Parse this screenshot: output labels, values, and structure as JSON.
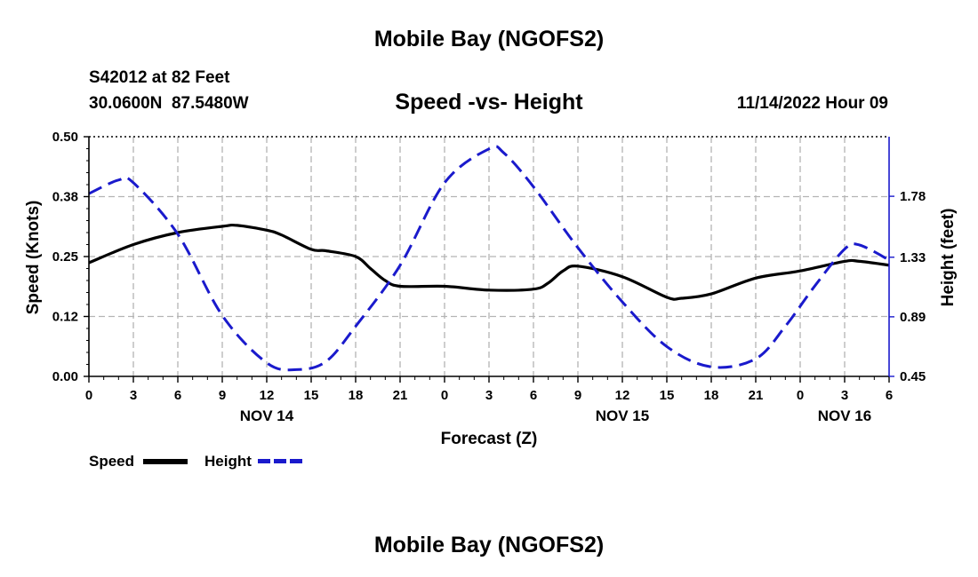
{
  "header": {
    "title": "Mobile Bay (NGOFS2)",
    "station": "S42012 at 82 Feet",
    "coords": "30.0600N  87.5480W",
    "subtitle": "Speed -vs- Height",
    "datetime": "11/14/2022 Hour 09"
  },
  "legend": {
    "speed_label": "Speed",
    "height_label": "Height"
  },
  "footer": {
    "title": "Mobile Bay (NGOFS2)"
  },
  "colors": {
    "speed": "#000000",
    "height": "#1a1acc",
    "grid": "#b4b4b4"
  },
  "chart_data": {
    "type": "line",
    "title": "Speed -vs- Height",
    "xlabel": "Forecast (Z)",
    "ylabel": "Speed (Knots)",
    "y2label": "Height (feet)",
    "x_range": [
      0,
      54
    ],
    "x_ticks": [
      0,
      3,
      6,
      9,
      12,
      15,
      18,
      21,
      24,
      27,
      30,
      33,
      36,
      39,
      42,
      45,
      48,
      51,
      54
    ],
    "x_tick_labels": [
      "0",
      "3",
      "6",
      "9",
      "12",
      "15",
      "18",
      "21",
      "0",
      "3",
      "6",
      "9",
      "12",
      "15",
      "18",
      "21",
      "0",
      "3",
      "6"
    ],
    "date_labels": [
      {
        "label": "NOV 14",
        "x": 12
      },
      {
        "label": "NOV 15",
        "x": 36
      },
      {
        "label": "NOV 16",
        "x": 51
      }
    ],
    "ylim": [
      0,
      0.5
    ],
    "y_ticks": [
      0,
      0.125,
      0.25,
      0.375,
      0.5
    ],
    "y_tick_labels": [
      "0.00",
      "0.12",
      "0.25",
      "0.38",
      "0.50"
    ],
    "y2lim": [
      0.45,
      2.22
    ],
    "y2_ticks": [
      0.45,
      0.89,
      1.33,
      1.78
    ],
    "y2_tick_labels": [
      "0.45",
      "0.89",
      "1.33",
      "1.78"
    ],
    "grid": true,
    "series": [
      {
        "name": "Speed",
        "axis": "left",
        "style": "solid",
        "x": [
          0,
          3,
          6,
          9,
          10,
          12,
          13,
          15,
          16,
          18,
          19,
          20,
          21,
          24,
          27,
          30,
          31,
          32,
          33,
          36,
          39,
          40,
          42,
          45,
          48,
          51,
          52,
          54
        ],
        "values": [
          0.237,
          0.275,
          0.3,
          0.313,
          0.315,
          0.305,
          0.295,
          0.265,
          0.262,
          0.25,
          0.225,
          0.2,
          0.188,
          0.188,
          0.18,
          0.182,
          0.195,
          0.22,
          0.23,
          0.208,
          0.165,
          0.163,
          0.172,
          0.205,
          0.22,
          0.24,
          0.24,
          0.232
        ]
      },
      {
        "name": "Height",
        "axis": "right",
        "style": "dashed",
        "x": [
          0,
          2,
          3,
          6,
          9,
          12,
          14,
          16,
          18,
          21,
          24,
          27,
          28,
          30,
          33,
          36,
          39,
          42,
          45,
          47,
          49,
          51,
          52,
          54
        ],
        "values": [
          1.8,
          1.9,
          1.88,
          1.5,
          0.9,
          0.55,
          0.5,
          0.56,
          0.82,
          1.27,
          1.88,
          2.13,
          2.1,
          1.85,
          1.4,
          1.0,
          0.67,
          0.52,
          0.58,
          0.82,
          1.12,
          1.39,
          1.42,
          1.31
        ]
      }
    ]
  }
}
